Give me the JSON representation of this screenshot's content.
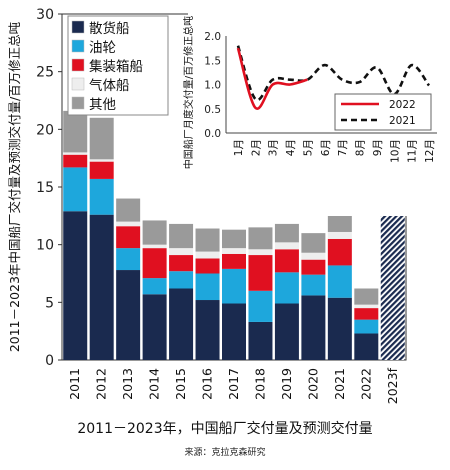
{
  "chart_data": [
    {
      "type": "bar",
      "stacked": true,
      "ylabel": "2011－2023年中国船厂交付量及预测交付量/百万修正总吨",
      "ylim": [
        0,
        30
      ],
      "yticks": [
        0,
        5,
        10,
        15,
        20,
        25,
        30
      ],
      "categories": [
        "2011",
        "2012",
        "2013",
        "2014",
        "2015",
        "2016",
        "2017",
        "2018",
        "2019",
        "2020",
        "2021",
        "2022",
        "2023f"
      ],
      "legend_position": "top-left",
      "series": [
        {
          "name": "散货船",
          "color": "#1a2a4f",
          "values": [
            12.9,
            12.6,
            7.8,
            5.7,
            6.2,
            5.2,
            4.9,
            3.3,
            4.9,
            5.6,
            5.4,
            2.3,
            null
          ]
        },
        {
          "name": "油轮",
          "color": "#1ea7dc",
          "values": [
            3.8,
            3.1,
            1.9,
            1.4,
            1.5,
            2.3,
            3.0,
            2.7,
            2.7,
            1.8,
            2.8,
            1.2,
            null
          ]
        },
        {
          "name": "集装箱船",
          "color": "#e01020",
          "values": [
            1.1,
            1.5,
            1.9,
            2.6,
            1.4,
            1.3,
            1.3,
            3.1,
            2.0,
            1.3,
            2.3,
            1.0,
            null
          ]
        },
        {
          "name": "气体船",
          "color": "#eeeeee",
          "values": [
            0.2,
            0.2,
            0.4,
            0.3,
            0.6,
            0.6,
            0.5,
            0.5,
            0.6,
            0.6,
            0.6,
            0.3,
            null
          ]
        },
        {
          "name": "其他",
          "color": "#9a9a9a",
          "values": [
            3.6,
            3.6,
            2.0,
            2.1,
            2.1,
            2.0,
            1.6,
            1.9,
            1.6,
            1.7,
            2.6,
            1.4,
            null
          ]
        }
      ],
      "forecast": {
        "color": "#1a2a4f",
        "pattern": "hatched",
        "values": {
          "2022": 5.6,
          "2023f": 14.1
        }
      }
    },
    {
      "type": "line",
      "ylabel": "中国船厂月度交付量/百万修正总吨",
      "ylim": [
        0,
        2.0
      ],
      "yticks": [
        "0.0",
        "0.5",
        "1.0",
        "1.5",
        "2.0"
      ],
      "x": [
        "1月",
        "2月",
        "3月",
        "4月",
        "5月",
        "6月",
        "7月",
        "8月",
        "9月",
        "10月",
        "11月",
        "12月"
      ],
      "legend_position": "bottom-right",
      "series": [
        {
          "name": "2022",
          "color": "#e01020",
          "style": "solid",
          "values": [
            1.75,
            0.52,
            1.0,
            1.0,
            1.1,
            null,
            null,
            null,
            null,
            null,
            null,
            null
          ]
        },
        {
          "name": "2021",
          "color": "#111111",
          "style": "dashed",
          "values": [
            1.8,
            0.7,
            1.1,
            1.1,
            1.1,
            1.4,
            1.1,
            1.05,
            1.35,
            0.8,
            1.4,
            0.98
          ]
        }
      ]
    }
  ],
  "caption": {
    "title": "2011－2023年，中国船厂交付量及预测交付量",
    "source": "来源：克拉克森研究"
  }
}
